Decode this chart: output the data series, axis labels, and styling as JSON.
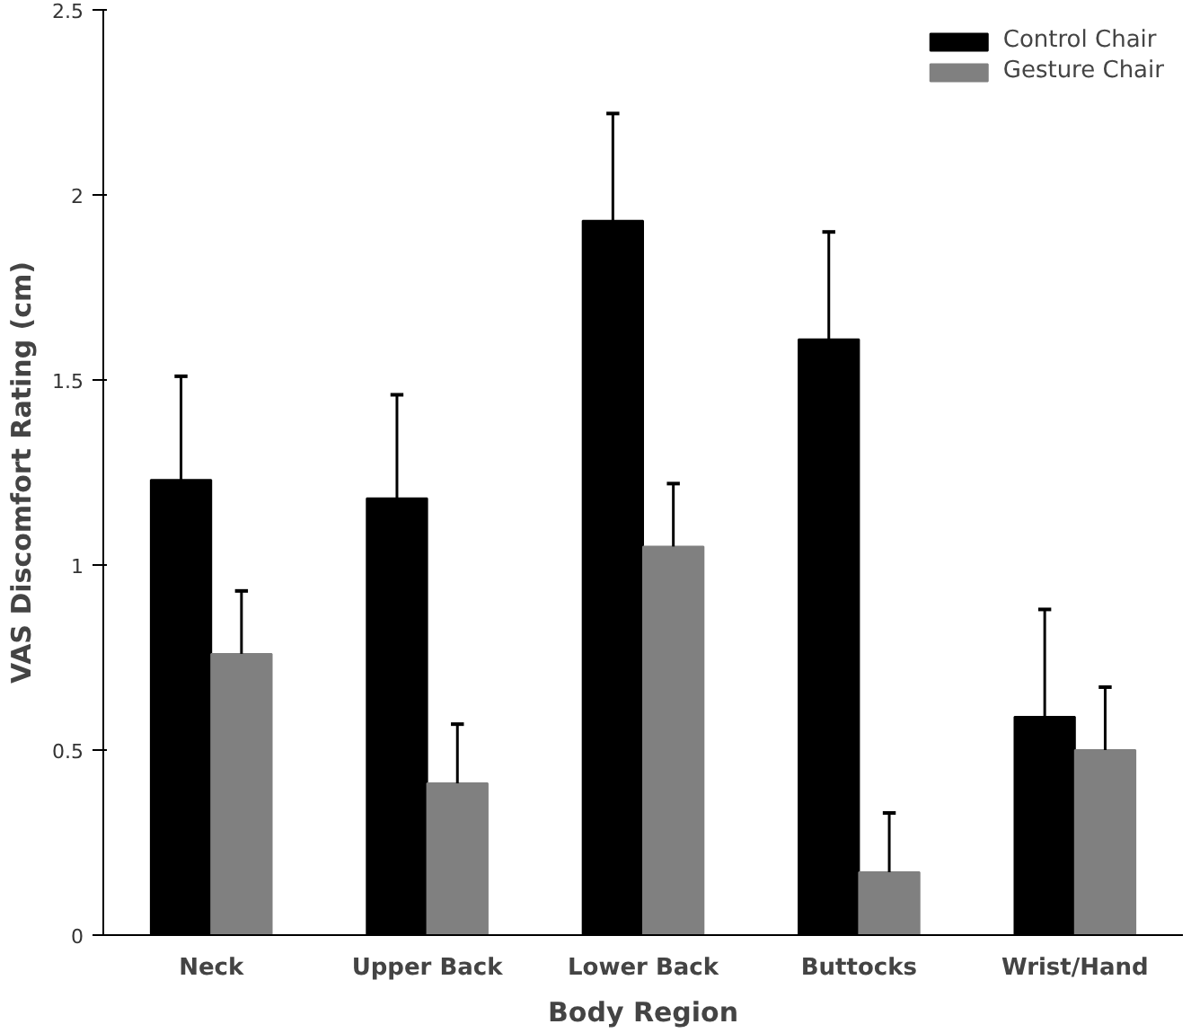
{
  "chart_data": {
    "type": "bar",
    "xlabel": "Body Region",
    "ylabel": "VAS Discomfort Rating (cm)",
    "categories": [
      "Neck",
      "Upper Back",
      "Lower Back",
      "Buttocks",
      "Wrist/Hand"
    ],
    "series": [
      {
        "name": "Control Chair",
        "color": "#000000",
        "values": [
          1.23,
          1.18,
          1.93,
          1.61,
          0.59
        ],
        "errors": [
          [
            1.23,
            1.51
          ],
          [
            1.18,
            1.46
          ],
          [
            1.93,
            2.22
          ],
          [
            1.61,
            1.9
          ],
          [
            0.59,
            0.88
          ]
        ]
      },
      {
        "name": "Gesture Chair",
        "color": "#808080",
        "values": [
          0.76,
          0.41,
          1.05,
          0.17,
          0.5
        ],
        "errors": [
          [
            0.76,
            0.93
          ],
          [
            0.41,
            0.57
          ],
          [
            1.05,
            1.22
          ],
          [
            0.17,
            0.33
          ],
          [
            0.5,
            0.67
          ]
        ]
      }
    ],
    "ylim": [
      0,
      2.5
    ],
    "yticks": [
      0,
      0.5,
      1,
      1.5,
      2,
      2.5
    ],
    "grid": false,
    "legend": "top right"
  }
}
